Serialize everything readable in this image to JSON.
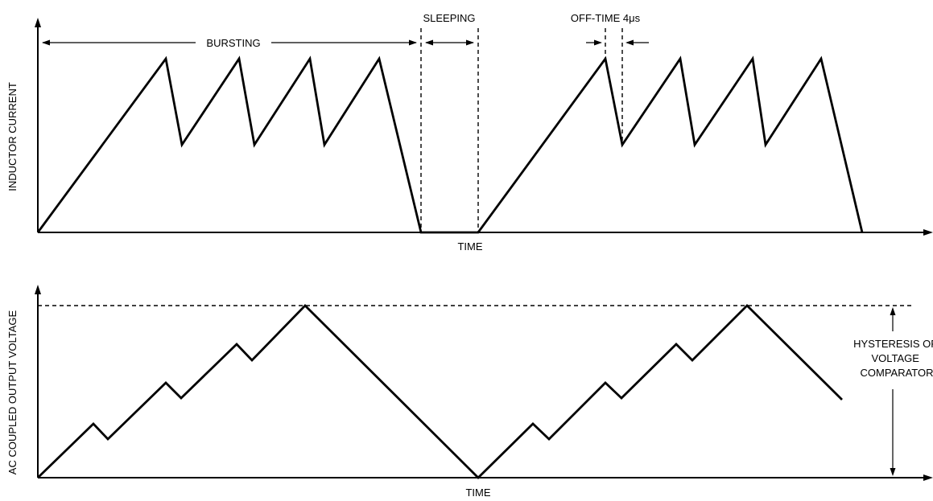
{
  "top_plot": {
    "ylabel": "INDUCTOR CURRENT",
    "xlabel": "TIME",
    "label_bursting": "BURSTING",
    "label_sleeping": "SLEEPING",
    "label_off_time": "OFF-TIME 4μs"
  },
  "bottom_plot": {
    "ylabel": "AC COUPLED OUTPUT VOLTAGE",
    "xlabel": "TIME",
    "hysteresis_lines": [
      "HYSTERESIS OF",
      "VOLTAGE",
      "COMPARATOR"
    ]
  }
}
